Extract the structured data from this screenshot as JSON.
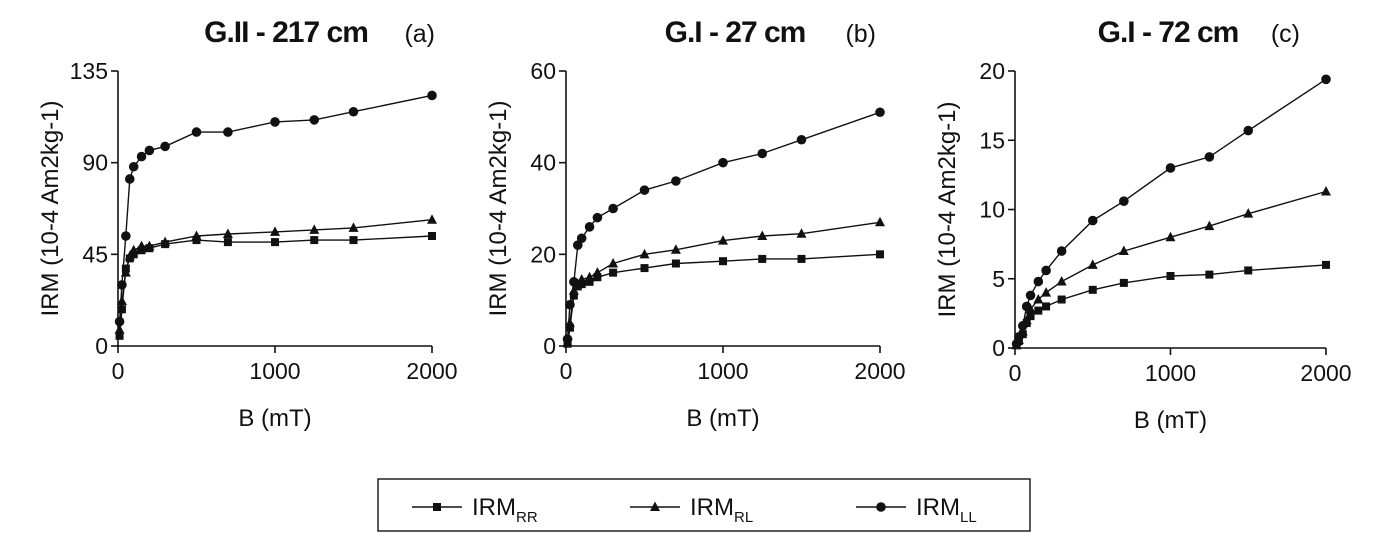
{
  "chart_data": [
    {
      "type": "line",
      "title": "G.II - 217 cm",
      "tag": "(a)",
      "xlabel": "B (mT)",
      "ylabel": "IRM (10-4 Am2kg-1)",
      "xlim": [
        0,
        2000
      ],
      "ylim": [
        0,
        135
      ],
      "xticks": [
        "0",
        "1000",
        "2000"
      ],
      "yticks": [
        "0",
        "45",
        "90",
        "135"
      ],
      "x": [
        10,
        25,
        50,
        75,
        100,
        150,
        200,
        300,
        500,
        700,
        1000,
        1250,
        1500,
        2000
      ],
      "series": [
        {
          "name": "IRM_RR",
          "values": [
            5,
            18,
            38,
            43,
            45,
            47,
            48,
            50,
            52,
            51,
            51,
            52,
            52,
            54
          ]
        },
        {
          "name": "IRM_RL",
          "values": [
            8,
            22,
            36,
            44,
            47,
            49,
            49,
            51,
            54,
            55,
            56,
            57,
            58,
            62
          ]
        },
        {
          "name": "IRM_LL",
          "values": [
            12,
            30,
            54,
            82,
            88,
            93,
            96,
            98,
            105,
            105,
            110,
            111,
            115,
            123
          ]
        }
      ]
    },
    {
      "type": "line",
      "title": "G.I - 27 cm",
      "tag": "(b)",
      "xlabel": "B (mT)",
      "ylabel": "IRM (10-4 Am2kg-1)",
      "xlim": [
        0,
        2000
      ],
      "ylim": [
        0,
        60
      ],
      "xticks": [
        "0",
        "1000",
        "2000"
      ],
      "yticks": [
        "0",
        "20",
        "40",
        "60"
      ],
      "x": [
        10,
        25,
        50,
        75,
        100,
        150,
        200,
        300,
        500,
        700,
        1000,
        1250,
        1500,
        2000
      ],
      "series": [
        {
          "name": "IRM_RR",
          "values": [
            0.5,
            4,
            11,
            13,
            13.5,
            14,
            15,
            16,
            17,
            18,
            18.5,
            19,
            19,
            20
          ]
        },
        {
          "name": "IRM_RL",
          "values": [
            0.8,
            5,
            12,
            13.5,
            14.5,
            15,
            16,
            18,
            20,
            21,
            23,
            24,
            24.5,
            27
          ]
        },
        {
          "name": "IRM_LL",
          "values": [
            1.5,
            9,
            14,
            22,
            23.5,
            26,
            28,
            30,
            34,
            36,
            40,
            42,
            45,
            51
          ]
        }
      ]
    },
    {
      "type": "line",
      "title": "G.I - 72 cm",
      "tag": "(c)",
      "xlabel": "B (mT)",
      "ylabel": "IRM (10-4 Am2kg-1)",
      "xlim": [
        0,
        2000
      ],
      "ylim": [
        0,
        20
      ],
      "xticks": [
        "0",
        "1000",
        "2000"
      ],
      "yticks": [
        "0",
        "5",
        "10",
        "15",
        "20"
      ],
      "x": [
        10,
        25,
        50,
        75,
        100,
        150,
        200,
        300,
        500,
        700,
        1000,
        1250,
        1500,
        2000
      ],
      "series": [
        {
          "name": "IRM_RR",
          "values": [
            0.2,
            0.5,
            1.0,
            1.8,
            2.3,
            2.7,
            3.0,
            3.5,
            4.2,
            4.7,
            5.2,
            5.3,
            5.6,
            6.0
          ]
        },
        {
          "name": "IRM_RL",
          "values": [
            0.2,
            0.6,
            1.2,
            2.0,
            2.8,
            3.5,
            4.0,
            4.8,
            6.0,
            7.0,
            8.0,
            8.8,
            9.7,
            11.3
          ]
        },
        {
          "name": "IRM_LL",
          "values": [
            0.3,
            0.8,
            1.6,
            3.0,
            3.8,
            4.8,
            5.6,
            7.0,
            9.2,
            10.6,
            13.0,
            13.8,
            15.7,
            19.4
          ]
        }
      ]
    }
  ],
  "legend": {
    "items": [
      {
        "label": "IRM",
        "sub": "RR",
        "marker": "square"
      },
      {
        "label": "IRM",
        "sub": "RL",
        "marker": "triangle"
      },
      {
        "label": "IRM",
        "sub": "LL",
        "marker": "circle"
      }
    ]
  }
}
